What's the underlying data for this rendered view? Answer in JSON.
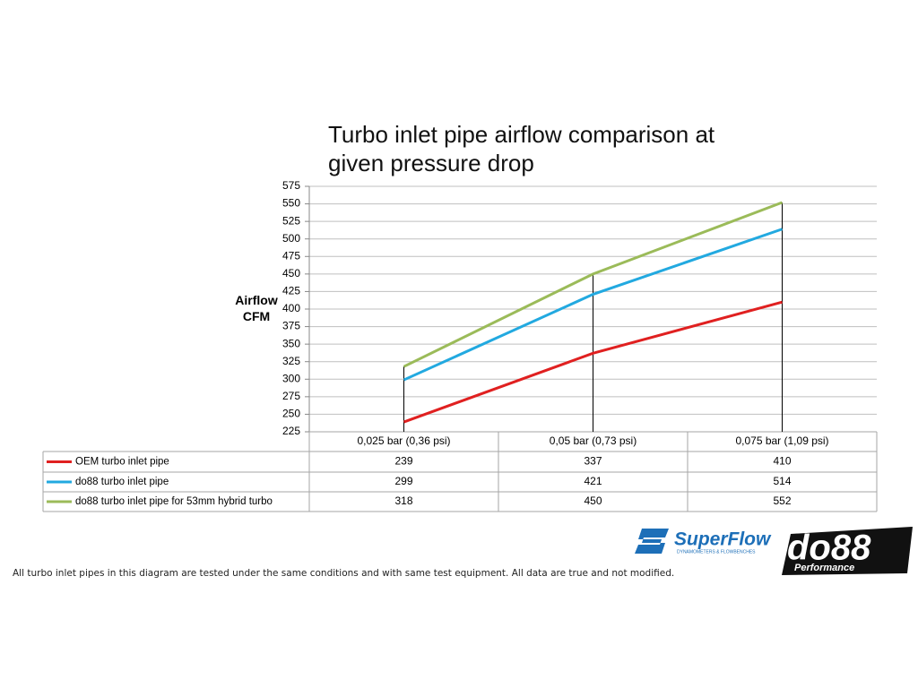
{
  "chart_data": {
    "type": "line",
    "title": "Turbo inlet pipe airflow comparison at given pressure drop",
    "y_label": "Airflow CFM",
    "categories": [
      "0,025 bar (0,36 psi)",
      "0,05 bar (0,73 psi)",
      "0,075 bar (1,09 psi)"
    ],
    "series": [
      {
        "name": "OEM turbo inlet pipe",
        "color": "#e02020",
        "values": [
          239,
          337,
          410
        ]
      },
      {
        "name": "do88 turbo inlet pipe",
        "color": "#22a9e0",
        "values": [
          299,
          421,
          514
        ]
      },
      {
        "name": "do88 turbo inlet pipe for 53mm hybrid turbo",
        "color": "#9bbb59",
        "values": [
          318,
          450,
          552
        ]
      }
    ],
    "ylim": [
      225,
      575
    ],
    "yticks": [
      225,
      250,
      275,
      300,
      325,
      350,
      375,
      400,
      425,
      450,
      475,
      500,
      525,
      550,
      575
    ],
    "grid": true,
    "data_table": true
  },
  "footnote": "All turbo inlet pipes in this diagram are tested under the same conditions and with same test equipment. All data are true and not modified.",
  "logos": {
    "superflow": "SuperFlow",
    "superflow_sub": "DYNAMOMETERS & FLOWBENCHES",
    "do88": "do88",
    "do88_sub": "Performance"
  }
}
